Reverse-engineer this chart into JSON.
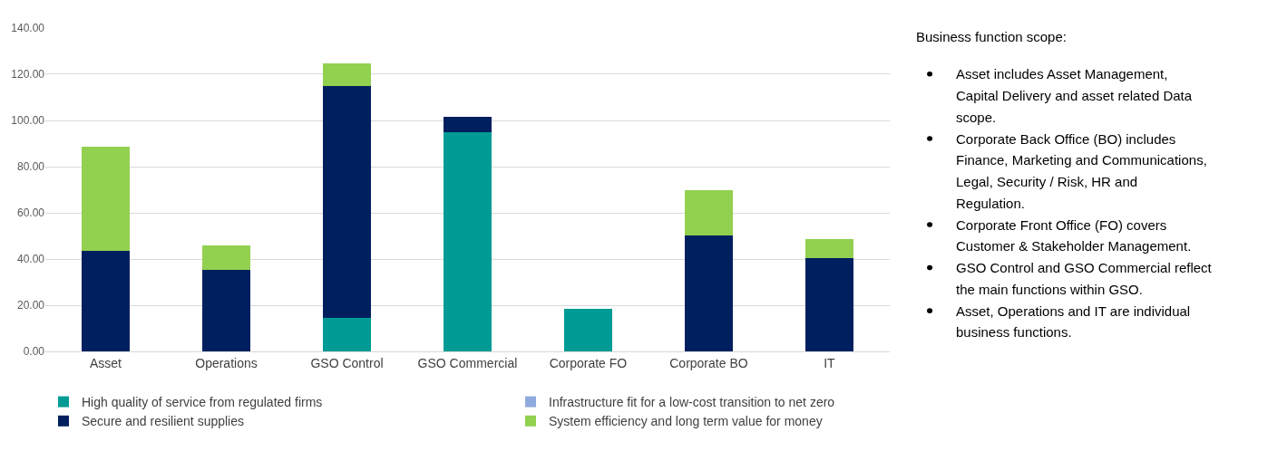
{
  "chart_data": {
    "type": "bar",
    "stacked": true,
    "categories": [
      "Asset",
      "Operations",
      "GSO Control",
      "GSO Commercial",
      "Corporate FO",
      "Corporate BO",
      "IT"
    ],
    "series": [
      {
        "name": "High quality of service from regulated firms",
        "color": "#009b95",
        "values": [
          0,
          0,
          14.4,
          94.8,
          18.5,
          0,
          0
        ]
      },
      {
        "name": "Infrastructure fit for a low-cost transition to net zero",
        "color": "#8faadc",
        "values": [
          0,
          0,
          0,
          0,
          0,
          0,
          0
        ]
      },
      {
        "name": "Secure and resilient supplies",
        "color": "#001f5f",
        "values": [
          43.6,
          35.4,
          100.5,
          6.9,
          0,
          50.2,
          40.5
        ]
      },
      {
        "name": "System efficiency and long term value for money",
        "color": "#92d050",
        "values": [
          44.9,
          10.5,
          9.9,
          0,
          0,
          19.6,
          8.0
        ]
      }
    ],
    "ylim": [
      0,
      140
    ],
    "yticks": [
      {
        "value": 0,
        "label": "0.00"
      },
      {
        "value": 20,
        "label": "20.00"
      },
      {
        "value": 40,
        "label": "40.00"
      },
      {
        "value": 60,
        "label": "60.00"
      },
      {
        "value": 80,
        "label": "80.00"
      },
      {
        "value": 100,
        "label": "100.00"
      },
      {
        "value": 120,
        "label": "120.00"
      },
      {
        "value": 140,
        "label": "140.00"
      }
    ],
    "grid": "y",
    "legend": "bottom",
    "annotations": [
      "Business function scope:",
      "Asset includes Asset Management, Capital Delivery and asset related Data scope.",
      "Corporate Back Office (BO) includes Finance, Marketing and Communications, Legal, Security / Risk, HR and Regulation.",
      "Corporate Front Office (FO) covers Customer & Stakeholder Management.",
      "GSO Control and GSO Commercial reflect the main functions within GSO.",
      "Asset, Operations and IT are individual business functions."
    ]
  }
}
